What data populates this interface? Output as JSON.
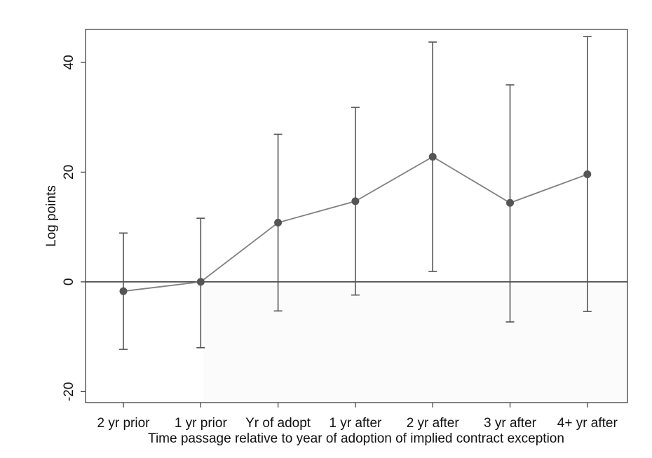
{
  "chart_data": {
    "type": "line",
    "title": "",
    "xlabel": "Time passage relative to year of adoption of implied contract exception",
    "ylabel": "Log points",
    "categories": [
      "2 yr prior",
      "1 yr prior",
      "Yr of adopt",
      "1 yr after",
      "2 yr after",
      "3 yr after",
      "4+ yr after"
    ],
    "series": [
      {
        "values": [
          -1.7,
          0.0,
          10.8,
          14.7,
          22.8,
          14.4,
          19.6
        ],
        "ci_lower": [
          -12.3,
          -12.0,
          -5.3,
          -2.4,
          1.9,
          -7.3,
          -5.4
        ],
        "ci_upper": [
          8.9,
          11.6,
          26.9,
          31.8,
          43.7,
          35.9,
          44.7
        ]
      }
    ],
    "ylim": [
      -22,
      46
    ],
    "yticks": [
      -20,
      0,
      20,
      40
    ],
    "reference_line": 0,
    "grid": false,
    "colors": {
      "line": "#808080",
      "marker": "#555555",
      "errorbar": "#555555",
      "zero_line": "#333333",
      "frame": "#333333"
    }
  }
}
